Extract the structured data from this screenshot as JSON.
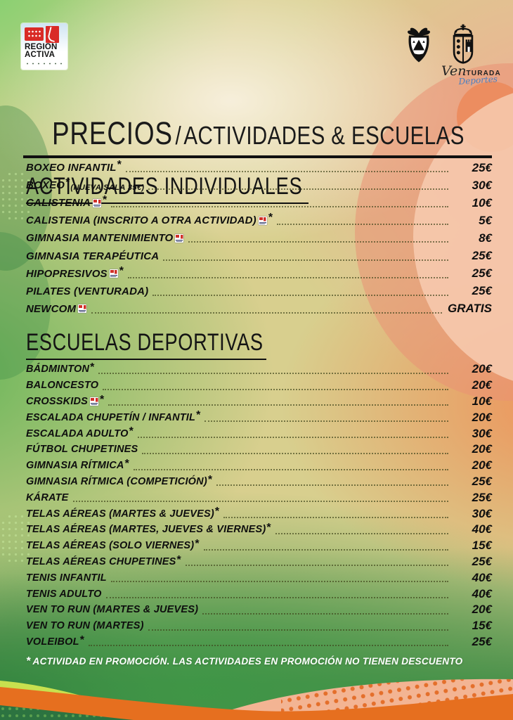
{
  "header": {
    "region_activa": {
      "line1": "REGIÓN",
      "line2": "ACTIVA"
    },
    "venturada": {
      "script": "Ven",
      "caps": "TURADA",
      "sub": "Deportes"
    },
    "title": {
      "main": "PRECIOS",
      "separator": "/",
      "rest": "ACTIVIDADES & ESCUELAS"
    }
  },
  "sections": [
    {
      "title": "ACTIVIDADES INDIVIDUALES",
      "rows": [
        {
          "label": "BOXEO INFANTIL",
          "star": true,
          "price": "25€"
        },
        {
          "label": "BOXEO",
          "star": true,
          "note": "(NUEVA SALA 35€)",
          "price": "30€"
        },
        {
          "label": "CALISTENIA",
          "icon": true,
          "star": true,
          "price": "10€"
        },
        {
          "label": "CALISTENIA (INSCRITO A OTRA ACTIVIDAD)",
          "icon": true,
          "star": true,
          "price": "5€"
        },
        {
          "label": "GIMNASIA MANTENIMIENTO",
          "icon": true,
          "price": "8€"
        },
        {
          "label": "GIMNASIA TERAPÉUTICA",
          "price": "25€"
        },
        {
          "label": "HIPOPRESIVOS",
          "icon": true,
          "star": true,
          "price": "25€"
        },
        {
          "label": "PILATES (VENTURADA)",
          "price": "25€"
        },
        {
          "label": "NEWCOM",
          "icon": true,
          "price": "GRATIS"
        }
      ]
    },
    {
      "title": "ESCUELAS DEPORTIVAS",
      "rows": [
        {
          "label": "BÁDMINTON",
          "star": true,
          "price": "20€"
        },
        {
          "label": "BALONCESTO",
          "price": "20€"
        },
        {
          "label": "CROSSKIDS",
          "icon": true,
          "star": true,
          "price": "10€"
        },
        {
          "label": "ESCALADA CHUPETÍN / INFANTIL",
          "star": true,
          "price": "20€"
        },
        {
          "label": "ESCALADA ADULTO",
          "star": true,
          "price": "30€"
        },
        {
          "label": "FÚTBOL CHUPETINES",
          "price": "20€"
        },
        {
          "label": "GIMNASIA RÍTMICA",
          "star": true,
          "price": "20€"
        },
        {
          "label": "GIMNASIA RÍTMICA (COMPETICIÓN)",
          "star": true,
          "price": "25€"
        },
        {
          "label": "KÁRATE",
          "price": "25€"
        },
        {
          "label": "TELAS AÉREAS (MARTES & JUEVES)",
          "star": true,
          "price": "30€"
        },
        {
          "label": "TELAS AÉREAS (MARTES, JUEVES & VIERNES)",
          "star": true,
          "price": "40€"
        },
        {
          "label": "TELAS AÉREAS (SOLO VIERNES)",
          "star": true,
          "price": "15€"
        },
        {
          "label": "TELAS AÉREAS CHUPETINES",
          "star": true,
          "price": "25€"
        },
        {
          "label": "TENIS INFANTIL",
          "price": "40€"
        },
        {
          "label": "TENIS ADULTO",
          "price": "40€"
        },
        {
          "label": "VEN TO RUN (MARTES & JUEVES)",
          "price": "20€"
        },
        {
          "label": "VEN TO RUN (MARTES)",
          "price": "15€"
        },
        {
          "label": "VOLEIBOL",
          "star": true,
          "price": "25€"
        }
      ]
    }
  ],
  "footnote": {
    "star": "*",
    "text": "ACTIVIDAD EN PROMOCIÓN. LAS ACTIVIDADES EN PROMOCIÓN NO TIENEN DESCUENTO"
  },
  "colors": {
    "green": "#7ed06d",
    "dark_green": "#2c7340",
    "cream": "#f6eedd",
    "salmon": "#f0a98f",
    "orange": "#e66f1f",
    "yellow_green": "#c8e04f",
    "peach": "#f3b493",
    "text_black": "#151515",
    "footnote_white": "#ffffff",
    "deportes_blue": "#4a7fc1",
    "logo_red": "#d03028"
  }
}
